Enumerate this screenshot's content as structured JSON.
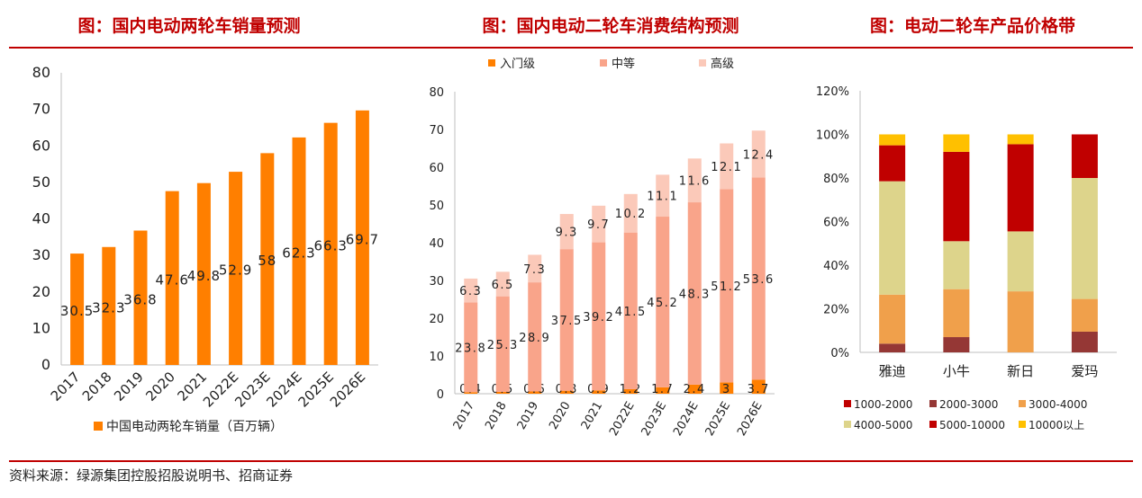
{
  "titles": {
    "c1": "图：国内电动两轮车销量预测",
    "c2": "图：国内电动二轮车消费结构预测",
    "c3": "图：电动二轮车产品价格带"
  },
  "source": "资料来源：绿源集团控股招股说明书、招商证券",
  "colors": {
    "brand_red": "#c00000",
    "orange": "#ff7f00",
    "entry": "#ff7f00",
    "mid": "#f9a48a",
    "high": "#fbc9b9"
  },
  "chart_data": [
    {
      "type": "bar",
      "categories": [
        "2017",
        "2018",
        "2019",
        "2020",
        "2021",
        "2022E",
        "2023E",
        "2024E",
        "2025E",
        "2026E"
      ],
      "series": [
        {
          "name": "中国电动两轮车销量（百万辆）",
          "values": [
            30.5,
            32.3,
            36.8,
            47.6,
            49.8,
            52.9,
            58,
            62.3,
            66.3,
            69.7
          ],
          "labels": [
            "30.5",
            "32.3",
            "36.8",
            "47.6",
            "49.8",
            "52.9",
            "58",
            "62.3",
            "66.3",
            "69.7"
          ]
        }
      ],
      "ylim": [
        0,
        80
      ],
      "yticks": [
        "0",
        "10",
        "20",
        "30",
        "40",
        "50",
        "60",
        "70",
        "80"
      ],
      "legend": "bottom",
      "grid": false
    },
    {
      "type": "bar",
      "stacked": true,
      "categories": [
        "2017",
        "2018",
        "2019",
        "2020",
        "2021",
        "2022E",
        "2023E",
        "2024E",
        "2025E",
        "2026E"
      ],
      "series": [
        {
          "name": "入门级",
          "values": [
            0.4,
            0.5,
            0.6,
            0.8,
            0.9,
            1.2,
            1.7,
            2.4,
            3,
            3.7
          ],
          "labels": [
            "0.4",
            "0.5",
            "0.6",
            "0.8",
            "0.9",
            "1.2",
            "1.7",
            "2.4",
            "3",
            "3.7"
          ]
        },
        {
          "name": "中等",
          "values": [
            23.8,
            25.3,
            28.9,
            37.5,
            39.2,
            41.5,
            45.2,
            48.3,
            51.2,
            53.6
          ],
          "labels": [
            "23.8",
            "25.3",
            "28.9",
            "37.5",
            "39.2",
            "41.5",
            "45.2",
            "48.3",
            "51.2",
            "53.6"
          ]
        },
        {
          "name": "高级",
          "values": [
            6.3,
            6.5,
            7.3,
            9.3,
            9.7,
            10.2,
            11.1,
            11.6,
            12.1,
            12.4
          ],
          "labels": [
            "6.3",
            "6.5",
            "7.3",
            "9.3",
            "9.7",
            "10.2",
            "11.1",
            "11.6",
            "12.1",
            "12.4"
          ]
        }
      ],
      "ylim": [
        0,
        80
      ],
      "yticks": [
        "0",
        "10",
        "20",
        "30",
        "40",
        "50",
        "60",
        "70",
        "80"
      ],
      "legend": "top",
      "grid": false
    },
    {
      "type": "bar",
      "stacked": true,
      "percent": true,
      "categories": [
        "雅迪",
        "小牛",
        "新日",
        "爱玛"
      ],
      "series": [
        {
          "name": "1000-2000",
          "color": "#c00000",
          "values": [
            0,
            0,
            0,
            0
          ]
        },
        {
          "name": "2000-3000",
          "color": "#953735",
          "values": [
            4,
            7,
            0,
            9.5
          ]
        },
        {
          "name": "3000-4000",
          "color": "#f0a04b",
          "values": [
            22.5,
            22,
            28,
            15
          ]
        },
        {
          "name": "4000-5000",
          "color": "#ddd48b",
          "values": [
            52,
            22,
            27.5,
            55.5
          ]
        },
        {
          "name": "5000-10000",
          "color": "#c00000",
          "values": [
            16.5,
            41,
            40,
            20
          ]
        },
        {
          "name": "10000以上",
          "color": "#ffc000",
          "values": [
            5,
            8,
            4.5,
            0
          ]
        }
      ],
      "ylim": [
        0,
        120
      ],
      "yticks": [
        "0%",
        "20%",
        "40%",
        "60%",
        "80%",
        "100%",
        "120%"
      ],
      "legend": "bottom",
      "grid": false
    }
  ]
}
